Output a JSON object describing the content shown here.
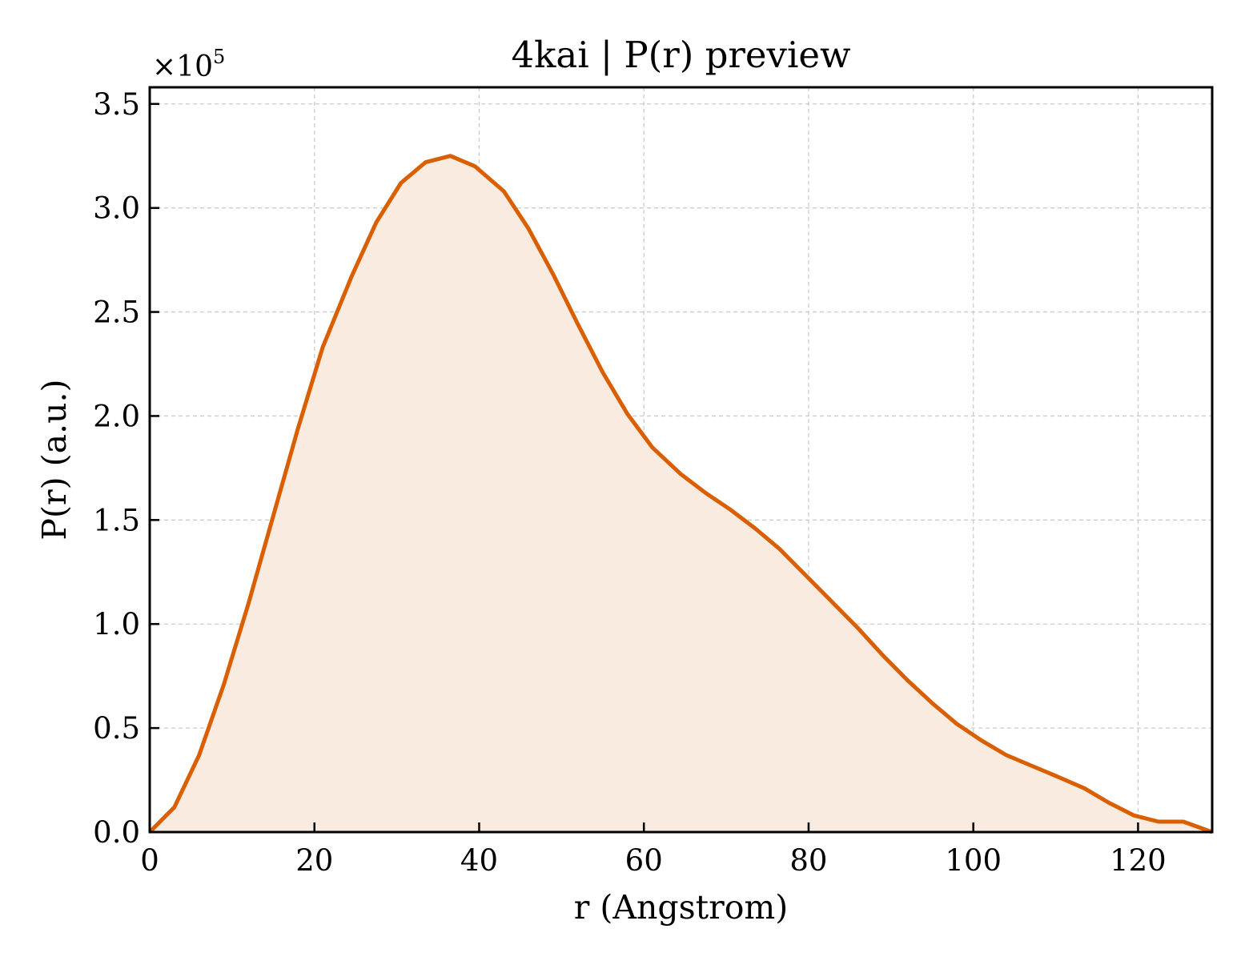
{
  "chart_data": {
    "type": "area",
    "title": "4kai | P(r) preview",
    "xlabel": "r (Angstrom)",
    "ylabel": "P(r) (a.u.)",
    "y_multiplier_base": "×10",
    "y_multiplier_exp": "5",
    "xlim": [
      0,
      129
    ],
    "ylim": [
      0,
      3.58
    ],
    "y_unit_scale": 100000,
    "xticks": [
      0,
      20,
      40,
      60,
      80,
      100,
      120
    ],
    "xtick_labels": [
      "0",
      "20",
      "40",
      "60",
      "80",
      "100",
      "120"
    ],
    "yticks": [
      0,
      0.5,
      1.0,
      1.5,
      2.0,
      2.5,
      3.0,
      3.5
    ],
    "ytick_labels": [
      "0.0",
      "0.5",
      "1.0",
      "1.5",
      "2.0",
      "2.5",
      "3.0",
      "3.5"
    ],
    "grid": true,
    "legend": "none",
    "line_color": "#d95f02",
    "fill_color": "#f9ebe0",
    "series": [
      {
        "x": [
          0,
          3,
          6,
          9,
          12,
          15,
          18,
          21,
          24.5,
          27.5,
          30.5,
          33.5,
          36.5,
          39.5,
          43,
          46,
          49,
          52,
          55,
          58,
          61,
          64.5,
          67.5,
          70.5,
          73.5,
          76.5,
          79.5,
          83,
          86,
          89,
          92,
          95,
          98,
          101,
          104,
          107,
          110,
          113.5,
          116.5,
          119.5,
          122.5,
          125.5,
          129
        ],
        "y": [
          0.0,
          0.12,
          0.37,
          0.71,
          1.1,
          1.52,
          1.94,
          2.33,
          2.67,
          2.93,
          3.12,
          3.22,
          3.25,
          3.2,
          3.08,
          2.9,
          2.68,
          2.44,
          2.21,
          2.01,
          1.85,
          1.72,
          1.63,
          1.55,
          1.46,
          1.36,
          1.24,
          1.1,
          0.98,
          0.85,
          0.73,
          0.62,
          0.52,
          0.44,
          0.37,
          0.32,
          0.27,
          0.21,
          0.14,
          0.08,
          0.05,
          0.05,
          0.0
        ]
      }
    ]
  }
}
